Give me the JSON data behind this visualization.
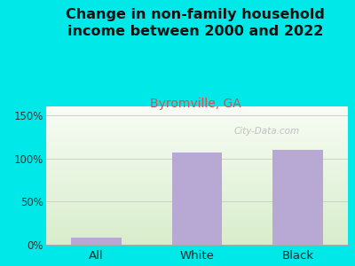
{
  "title": "Change in non-family household\nincome between 2000 and 2022",
  "subtitle": "Byromville, GA",
  "categories": [
    "All",
    "White",
    "Black"
  ],
  "values": [
    8,
    107,
    110
  ],
  "bar_color": "#b8a8d4",
  "title_fontsize": 11.5,
  "subtitle_fontsize": 10,
  "subtitle_color": "#cc5555",
  "title_color": "#111111",
  "background_outer": "#00e8e8",
  "ylim": [
    0,
    160
  ],
  "yticks": [
    0,
    50,
    100,
    150
  ],
  "yticklabels": [
    "0%",
    "50%",
    "100%",
    "150%"
  ],
  "grid_color": "#cccccc",
  "watermark": "City-Data.com",
  "bar_width": 0.5
}
